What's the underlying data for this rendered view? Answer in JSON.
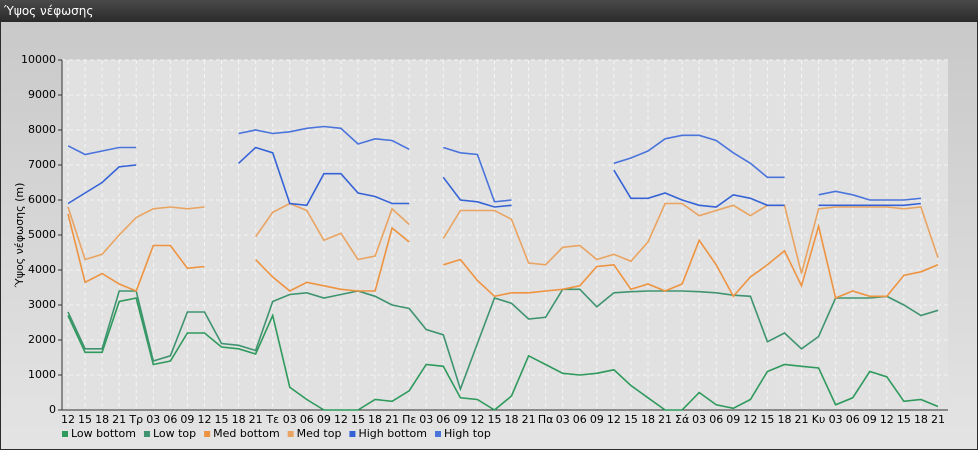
{
  "window_title": "Ύψος νέφωσης",
  "chart_data": {
    "type": "line",
    "y_label": "Ύψος νέφωσης (m)",
    "categories": [
      "12",
      "15",
      "18",
      "21",
      "Τρ",
      "03",
      "06",
      "09",
      "12",
      "15",
      "18",
      "21",
      "Τε",
      "03",
      "06",
      "09",
      "12",
      "15",
      "18",
      "21",
      "Πε",
      "03",
      "06",
      "09",
      "12",
      "15",
      "18",
      "21",
      "Πα",
      "03",
      "06",
      "09",
      "12",
      "15",
      "18",
      "21",
      "Σά",
      "03",
      "06",
      "09",
      "12",
      "15",
      "18",
      "21",
      "Κυ",
      "03",
      "06",
      "09",
      "12",
      "15",
      "18",
      "21"
    ],
    "ylim": [
      0,
      10000
    ],
    "yticks": [
      0,
      1000,
      2000,
      3000,
      4000,
      5000,
      6000,
      7000,
      8000,
      9000,
      10000
    ],
    "grid": true,
    "legend": "bottom",
    "series": [
      {
        "name": "Low bottom",
        "color": "#2e9a5c",
        "values": [
          2700,
          1650,
          1650,
          3100,
          3200,
          1300,
          1400,
          2200,
          2200,
          1800,
          1750,
          1600,
          2700,
          650,
          300,
          0,
          0,
          0,
          300,
          250,
          550,
          1300,
          1250,
          350,
          300,
          0,
          400,
          1550,
          1300,
          1050,
          1000,
          1050,
          1150,
          700,
          350,
          0,
          0,
          500,
          150,
          50,
          300,
          1100,
          1300,
          1250,
          1200,
          150,
          350,
          1100,
          950,
          250,
          300,
          100
        ]
      },
      {
        "name": "Low top",
        "color": "#3f9470",
        "values": [
          2800,
          1750,
          1750,
          3400,
          3400,
          1400,
          1550,
          2800,
          2800,
          1900,
          1850,
          1700,
          3100,
          3300,
          3350,
          3200,
          3300,
          3400,
          3250,
          3000,
          2900,
          2300,
          2150,
          600,
          1900,
          3200,
          3050,
          2600,
          2650,
          3450,
          3450,
          2950,
          3350,
          3380,
          3400,
          3400,
          3400,
          3380,
          3350,
          3280,
          3250,
          1950,
          2200,
          1750,
          2100,
          3200,
          3200,
          3200,
          3250,
          3000,
          2700,
          2850
        ]
      },
      {
        "name": "Med bottom",
        "color": "#ee9340",
        "values": [
          5600,
          3650,
          3900,
          3600,
          3400,
          4700,
          4700,
          4050,
          4100,
          null,
          null,
          4300,
          3800,
          3400,
          3650,
          3550,
          3450,
          3400,
          3400,
          5200,
          4800,
          null,
          4150,
          4300,
          3700,
          3250,
          3350,
          3350,
          3400,
          3450,
          3550,
          4100,
          4150,
          3450,
          3600,
          3400,
          3600,
          4850,
          4150,
          3250,
          3800,
          4150,
          4550,
          3550,
          5250,
          3200,
          3400,
          3250,
          3250,
          3850,
          3950,
          4150
        ]
      },
      {
        "name": "Med top",
        "color": "#e9a462",
        "values": [
          5800,
          4300,
          4450,
          5000,
          5500,
          5750,
          5800,
          5750,
          5800,
          null,
          null,
          4950,
          5650,
          5900,
          5700,
          4850,
          5050,
          4300,
          4400,
          5750,
          5300,
          null,
          4900,
          5700,
          5700,
          5700,
          5450,
          4200,
          4150,
          4650,
          4700,
          4300,
          4450,
          4250,
          4800,
          5900,
          5900,
          5550,
          5700,
          5850,
          5550,
          5850,
          5850,
          3900,
          5750,
          5800,
          5800,
          5800,
          5800,
          5750,
          5800,
          4350
        ]
      },
      {
        "name": "High bottom",
        "color": "#3563d6",
        "values": [
          5900,
          6200,
          6500,
          6950,
          7000,
          null,
          null,
          null,
          null,
          null,
          7050,
          7500,
          7350,
          5900,
          5850,
          6750,
          6750,
          6200,
          6100,
          5900,
          5900,
          null,
          6650,
          6000,
          5950,
          5800,
          5850,
          null,
          null,
          null,
          null,
          null,
          6850,
          6050,
          6050,
          6200,
          6000,
          5850,
          5800,
          6150,
          6050,
          5850,
          5850,
          null,
          5850,
          5850,
          5850,
          5850,
          5850,
          5850,
          5900,
          null
        ]
      },
      {
        "name": "High top",
        "color": "#4a74dc",
        "values": [
          7550,
          7300,
          7400,
          7500,
          7500,
          null,
          null,
          null,
          null,
          null,
          7900,
          8000,
          7900,
          7950,
          8050,
          8100,
          8050,
          7600,
          7750,
          7700,
          7450,
          null,
          7500,
          7350,
          7300,
          5950,
          6000,
          null,
          null,
          null,
          null,
          null,
          7050,
          7200,
          7400,
          7750,
          7850,
          7850,
          7700,
          7350,
          7050,
          6650,
          6650,
          null,
          6150,
          6250,
          6150,
          6000,
          6000,
          6000,
          6050,
          null
        ]
      }
    ]
  }
}
